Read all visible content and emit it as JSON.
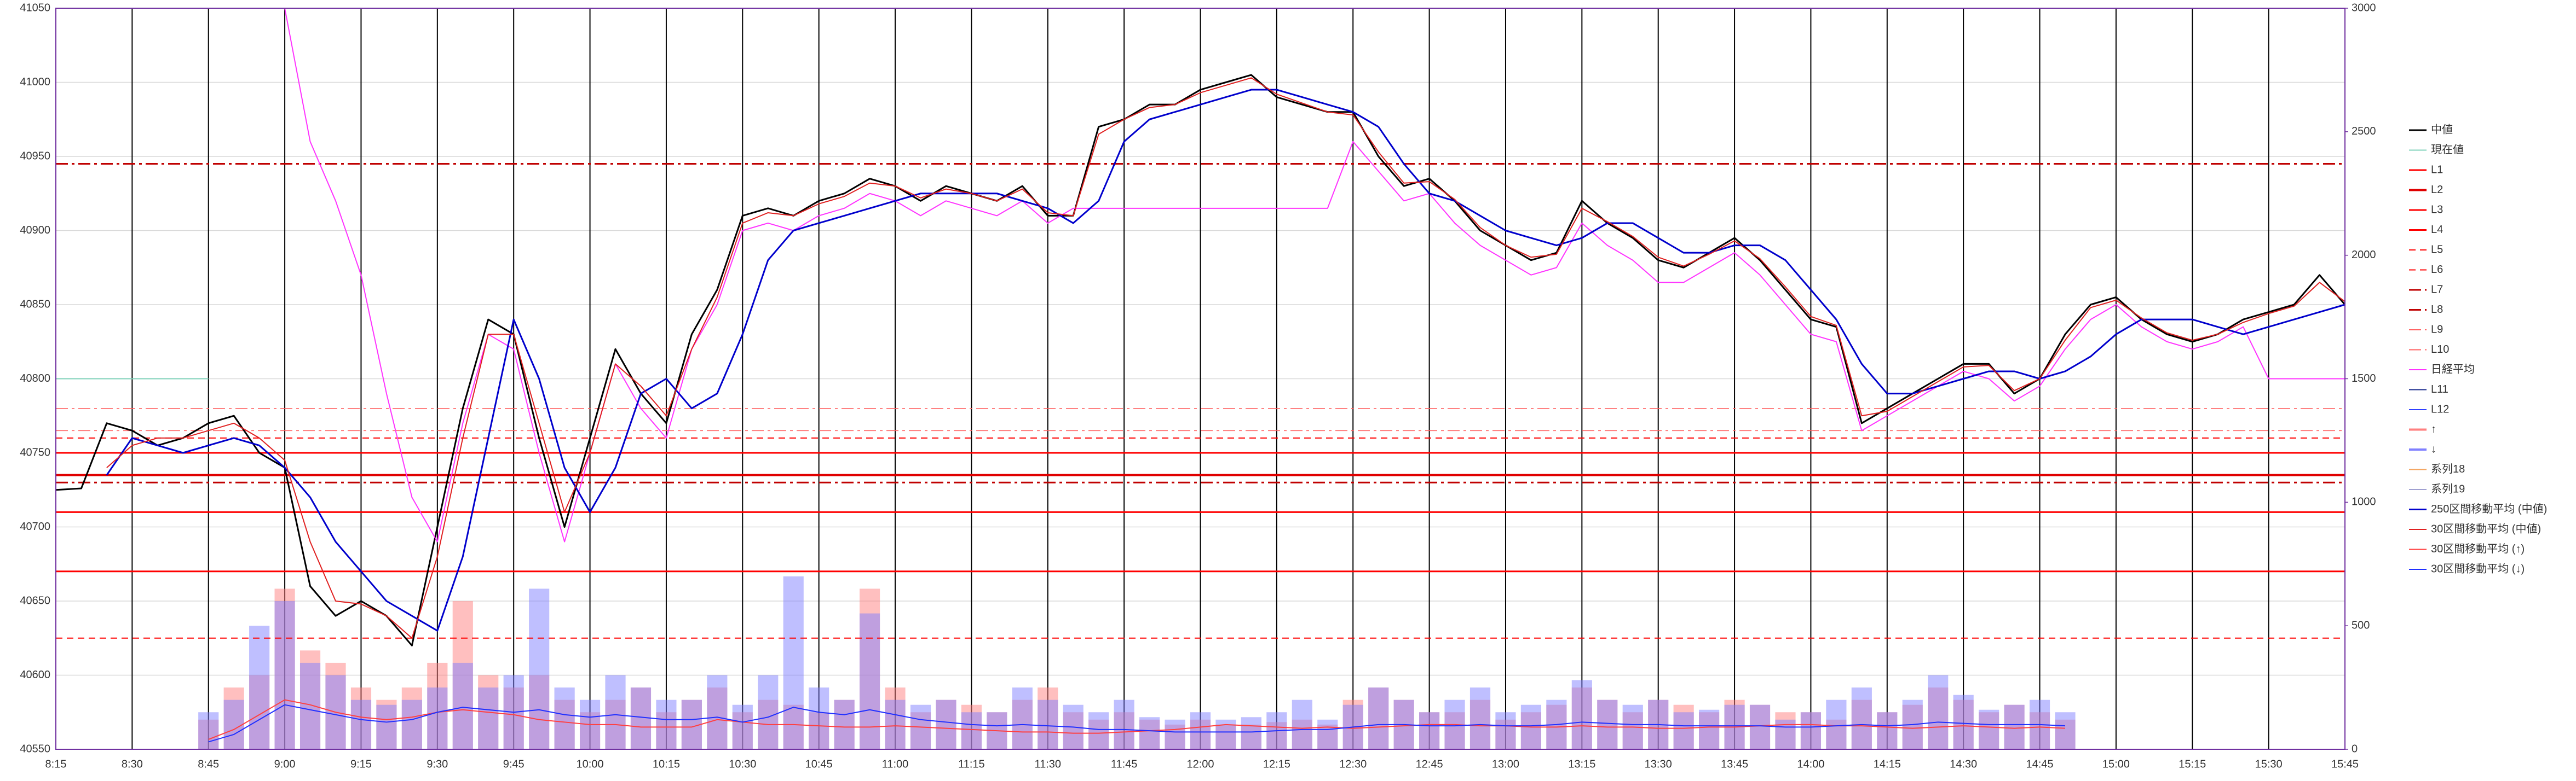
{
  "chart_data": {
    "type": "line",
    "x": [
      "8:15",
      "8:20",
      "8:25",
      "8:30",
      "8:35",
      "8:40",
      "8:45",
      "8:50",
      "8:55",
      "9:00",
      "9:05",
      "9:10",
      "9:15",
      "9:20",
      "9:25",
      "9:30",
      "9:35",
      "9:40",
      "9:45",
      "9:50",
      "9:55",
      "10:00",
      "10:05",
      "10:10",
      "10:15",
      "10:20",
      "10:25",
      "10:30",
      "10:35",
      "10:40",
      "10:45",
      "10:50",
      "10:55",
      "11:00",
      "11:05",
      "11:10",
      "11:15",
      "11:20",
      "11:25",
      "11:30",
      "11:35",
      "11:40",
      "11:45",
      "11:50",
      "11:55",
      "12:00",
      "12:05",
      "12:10",
      "12:15",
      "12:20",
      "12:25",
      "12:30",
      "12:35",
      "12:40",
      "12:45",
      "12:50",
      "12:55",
      "13:00",
      "13:05",
      "13:10",
      "13:15",
      "13:20",
      "13:25",
      "13:30",
      "13:35",
      "13:40",
      "13:45",
      "13:50",
      "13:55",
      "14:00",
      "14:05",
      "14:10",
      "14:15",
      "14:20",
      "14:25",
      "14:30",
      "14:35",
      "14:40",
      "14:45",
      "14:50",
      "14:55",
      "15:00",
      "15:05",
      "15:10",
      "15:15",
      "15:20",
      "15:25",
      "15:30",
      "15:35",
      "15:40",
      "15:45"
    ],
    "xlim": [
      "8:15",
      "15:45"
    ],
    "xticks": [
      "8:15",
      "8:30",
      "8:45",
      "9:00",
      "9:15",
      "9:30",
      "9:45",
      "10:00",
      "10:15",
      "10:30",
      "10:45",
      "11:00",
      "11:15",
      "11:30",
      "11:45",
      "12:00",
      "12:15",
      "12:30",
      "12:45",
      "13:00",
      "13:15",
      "13:30",
      "13:45",
      "14:00",
      "14:15",
      "14:30",
      "14:45",
      "15:00",
      "15:15",
      "15:30",
      "15:45"
    ],
    "ylim": [
      40550,
      41050
    ],
    "yticks": [
      40550,
      40600,
      40650,
      40700,
      40750,
      40800,
      40850,
      40900,
      40950,
      41000,
      41050
    ],
    "y2lim": [
      0,
      3000
    ],
    "y2ticks": [
      0,
      500,
      1000,
      1500,
      2000,
      2500,
      3000
    ],
    "grid": true,
    "legend": "right",
    "series": [
      {
        "name": "中値",
        "type": "line",
        "color": "#000000",
        "width": 3,
        "values": [
          40725,
          40726,
          40770,
          40765,
          40755,
          40760,
          40770,
          40775,
          40750,
          40740,
          40660,
          40640,
          40650,
          40640,
          40620,
          40700,
          40780,
          40840,
          40830,
          40760,
          40700,
          40760,
          40820,
          40790,
          40770,
          40830,
          40860,
          40910,
          40915,
          40910,
          40920,
          40925,
          40935,
          40930,
          40920,
          40930,
          40925,
          40920,
          40930,
          40910,
          40910,
          40970,
          40975,
          40985,
          40985,
          40995,
          41000,
          41005,
          40990,
          40985,
          40980,
          40980,
          40950,
          40930,
          40935,
          40920,
          40900,
          40890,
          40880,
          40885,
          40920,
          40905,
          40895,
          40880,
          40875,
          40885,
          40895,
          40880,
          40860,
          40840,
          40835,
          40770,
          40780,
          40790,
          40800,
          40810,
          40810,
          40790,
          40800,
          40830,
          40850,
          40855,
          40840,
          40830,
          40825,
          40830,
          40840,
          40845,
          40850,
          40870,
          40850
        ]
      },
      {
        "name": "現在値",
        "type": "line",
        "color": "#7fd1b9",
        "width": 2,
        "x": [
          "8:15",
          "8:45"
        ],
        "values": [
          40800,
          40800
        ]
      },
      {
        "name": "L1",
        "type": "hline",
        "color": "#ff0000",
        "width": 3,
        "style": "solid",
        "value": 40750
      },
      {
        "name": "L2",
        "type": "hline",
        "color": "#e00000",
        "width": 4,
        "style": "solid",
        "value": 40735
      },
      {
        "name": "L3",
        "type": "hline",
        "color": "#ff0000",
        "width": 3,
        "style": "solid",
        "value": 40710
      },
      {
        "name": "L4",
        "type": "hline",
        "color": "#ff0000",
        "width": 3,
        "style": "solid",
        "value": 40670
      },
      {
        "name": "L5",
        "type": "hline",
        "color": "#ff0000",
        "width": 2,
        "style": "dashed",
        "value": 40760
      },
      {
        "name": "L6",
        "type": "hline",
        "color": "#ff0000",
        "width": 2,
        "style": "dashed",
        "value": 40625
      },
      {
        "name": "L7",
        "type": "hline",
        "color": "#c00000",
        "width": 3,
        "style": "dashdot",
        "value": 40945
      },
      {
        "name": "L8",
        "type": "hline",
        "color": "#c00000",
        "width": 3,
        "style": "dashdot",
        "value": 40730
      },
      {
        "name": "L9",
        "type": "hline",
        "color": "#ff6060",
        "width": 1.5,
        "style": "dashdot",
        "value": 40780
      },
      {
        "name": "L10",
        "type": "hline",
        "color": "#ff6060",
        "width": 1.5,
        "style": "dashdot",
        "value": 40765
      },
      {
        "name": "日経平均",
        "type": "line",
        "color": "#ff33ff",
        "width": 2,
        "values": [
          null,
          null,
          null,
          null,
          null,
          null,
          null,
          null,
          null,
          41050,
          40960,
          40920,
          40870,
          40790,
          40720,
          40690,
          40770,
          40830,
          40820,
          40750,
          40690,
          40750,
          40810,
          40780,
          40760,
          40820,
          40850,
          40900,
          40905,
          40900,
          40910,
          40915,
          40925,
          40920,
          40910,
          40920,
          40915,
          40910,
          40920,
          40905,
          40915,
          40915,
          40915,
          40915,
          40915,
          40915,
          40915,
          40915,
          40915,
          40915,
          40915,
          40960,
          40940,
          40920,
          40925,
          40905,
          40890,
          40880,
          40870,
          40875,
          40905,
          40890,
          40880,
          40865,
          40865,
          40875,
          40885,
          40870,
          40850,
          40830,
          40825,
          40765,
          40775,
          40785,
          40795,
          40805,
          40800,
          40785,
          40795,
          40820,
          40840,
          40850,
          40835,
          40825,
          40820,
          40825,
          40835,
          40800,
          40800,
          40800,
          40800
        ]
      },
      {
        "name": "L11",
        "type": "hline",
        "color": "#1f2f8f"
      },
      {
        "name": "L12",
        "type": "hline",
        "color": "#3040ff"
      },
      {
        "name": "↑",
        "type": "bar",
        "axis": "y2",
        "color": "#ff8080",
        "values": [
          null,
          null,
          null,
          null,
          null,
          null,
          120,
          250,
          300,
          650,
          400,
          350,
          250,
          200,
          250,
          350,
          600,
          300,
          250,
          300,
          200,
          150,
          200,
          250,
          150,
          200,
          250,
          150,
          200,
          180,
          150,
          200,
          650,
          250,
          150,
          200,
          180,
          150,
          200,
          250,
          150,
          120,
          150,
          120,
          100,
          120,
          100,
          100,
          110,
          120,
          100,
          200,
          250,
          200,
          150,
          150,
          200,
          120,
          150,
          180,
          250,
          200,
          150,
          200,
          180,
          150,
          200,
          180,
          150,
          150,
          120,
          200,
          150,
          180,
          250,
          200,
          150,
          180,
          150,
          120,
          null,
          null,
          null,
          null,
          null,
          null,
          null,
          null,
          null,
          null,
          null
        ]
      },
      {
        "name": "↓",
        "type": "bar",
        "axis": "y2",
        "color": "#8080ff",
        "values": [
          null,
          null,
          null,
          null,
          null,
          null,
          150,
          200,
          500,
          600,
          350,
          300,
          200,
          180,
          200,
          250,
          350,
          250,
          300,
          650,
          250,
          200,
          300,
          250,
          200,
          200,
          300,
          180,
          300,
          700,
          250,
          200,
          550,
          200,
          180,
          200,
          150,
          150,
          250,
          200,
          180,
          150,
          200,
          130,
          120,
          150,
          120,
          130,
          150,
          200,
          120,
          180,
          250,
          200,
          150,
          200,
          250,
          150,
          180,
          200,
          280,
          200,
          180,
          200,
          150,
          160,
          180,
          180,
          120,
          150,
          200,
          250,
          150,
          200,
          300,
          220,
          160,
          180,
          200,
          150,
          null,
          null,
          null,
          null,
          null,
          null,
          null,
          null,
          null,
          null,
          null
        ]
      },
      {
        "name": "系列18",
        "type": "line",
        "color": "#f4a460"
      },
      {
        "name": "系列19",
        "type": "line",
        "color": "#a0a0d0"
      },
      {
        "name": "250区間移動平均 (中値)",
        "type": "line",
        "color": "#0000cc",
        "width": 3,
        "values": [
          null,
          null,
          40735,
          40760,
          40755,
          40750,
          40755,
          40760,
          40755,
          40740,
          40720,
          40690,
          40670,
          40650,
          40640,
          40630,
          40680,
          40760,
          40840,
          40800,
          40740,
          40710,
          40740,
          40790,
          40800,
          40780,
          40790,
          40830,
          40880,
          40900,
          40905,
          40910,
          40915,
          40920,
          40925,
          40925,
          40925,
          40925,
          40920,
          40915,
          40905,
          40920,
          40960,
          40975,
          40980,
          40985,
          40990,
          40995,
          40995,
          40990,
          40985,
          40980,
          40970,
          40945,
          40925,
          40920,
          40910,
          40900,
          40895,
          40890,
          40895,
          40905,
          40905,
          40895,
          40885,
          40885,
          40890,
          40890,
          40880,
          40860,
          40840,
          40810,
          40790,
          40790,
          40795,
          40800,
          40805,
          40805,
          40800,
          40805,
          40815,
          40830,
          40840,
          40840,
          40840,
          40835,
          40830,
          40835,
          40840,
          40845,
          40850
        ]
      },
      {
        "name": "30区間移動平均 (中値)",
        "type": "line",
        "color": "#e02020",
        "width": 2,
        "values": [
          null,
          null,
          40740,
          40755,
          40760,
          40760,
          40765,
          40770,
          40760,
          40745,
          40690,
          40650,
          40648,
          40640,
          40625,
          40680,
          40760,
          40830,
          40830,
          40770,
          40710,
          40750,
          40810,
          40795,
          40775,
          40820,
          40855,
          40905,
          40912,
          40910,
          40918,
          40923,
          40932,
          40930,
          40922,
          40928,
          40925,
          40920,
          40928,
          40912,
          40910,
          40965,
          40975,
          40983,
          40985,
          40993,
          40998,
          41003,
          40992,
          40986,
          40980,
          40978,
          40953,
          40932,
          40933,
          40921,
          40902,
          40890,
          40882,
          40884,
          40915,
          40906,
          40896,
          40882,
          40876,
          40884,
          40893,
          40881,
          40862,
          40842,
          40836,
          40775,
          40778,
          40788,
          40798,
          40808,
          40809,
          40792,
          40800,
          40826,
          40848,
          40853,
          40841,
          40831,
          40826,
          40830,
          40838,
          40844,
          40849,
          40865,
          40852
        ]
      },
      {
        "name": "30区間移動平均 (↑)",
        "type": "line",
        "axis": "y2",
        "color": "#ff4040",
        "width": 2,
        "values": [
          null,
          null,
          null,
          null,
          null,
          null,
          40,
          80,
          140,
          200,
          180,
          150,
          130,
          120,
          130,
          150,
          160,
          150,
          140,
          120,
          110,
          100,
          100,
          90,
          90,
          90,
          120,
          110,
          100,
          100,
          95,
          90,
          90,
          95,
          90,
          85,
          80,
          75,
          70,
          70,
          65,
          65,
          70,
          75,
          80,
          90,
          100,
          95,
          90,
          85,
          90,
          85,
          90,
          95,
          100,
          100,
          95,
          95,
          90,
          90,
          95,
          90,
          90,
          85,
          85,
          90,
          90,
          95,
          100,
          100,
          95,
          95,
          90,
          85,
          90,
          95,
          90,
          85,
          90,
          85,
          null,
          null,
          null,
          null,
          null,
          null,
          null,
          null,
          null,
          null,
          null
        ]
      },
      {
        "name": "30区間移動平均 (↓)",
        "type": "line",
        "axis": "y2",
        "color": "#2030ff",
        "width": 2,
        "values": [
          null,
          null,
          null,
          null,
          null,
          null,
          30,
          60,
          120,
          180,
          160,
          140,
          120,
          110,
          120,
          150,
          170,
          160,
          150,
          160,
          140,
          130,
          140,
          130,
          120,
          120,
          130,
          110,
          130,
          170,
          150,
          140,
          160,
          140,
          120,
          110,
          100,
          95,
          100,
          95,
          90,
          80,
          80,
          75,
          70,
          70,
          70,
          70,
          75,
          80,
          80,
          90,
          100,
          100,
          95,
          95,
          100,
          95,
          95,
          100,
          110,
          105,
          100,
          100,
          95,
          95,
          95,
          95,
          90,
          90,
          95,
          100,
          95,
          100,
          110,
          105,
          100,
          100,
          100,
          95,
          null,
          null,
          null,
          null,
          null,
          null,
          null,
          null,
          null,
          null,
          null
        ]
      }
    ]
  }
}
